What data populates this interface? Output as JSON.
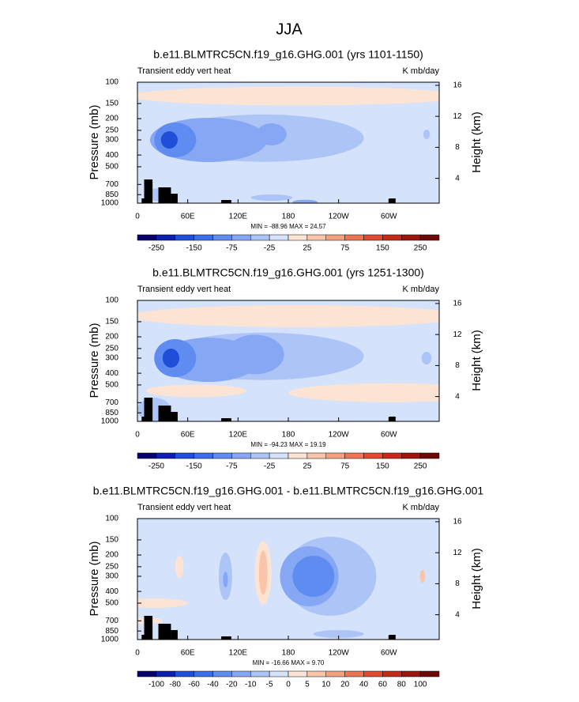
{
  "title": "JJA",
  "chart_data": [
    {
      "type": "contour",
      "title": "b.e11.BLMTRC5CN.f19_g16.GHG.001 (yrs 1101-1150)",
      "left_label": "Transient eddy vert heat",
      "right_label": "K mb/day",
      "ylabel": "Pressure (mb)",
      "y2label": "Height (km)",
      "xlim": [
        0,
        360
      ],
      "xticks": [
        0,
        {
          "value": 60,
          "label": "60E"
        },
        {
          "value": 120,
          "label": "120E"
        },
        180,
        {
          "value": 240,
          "label": "120W"
        },
        {
          "value": 300,
          "label": "60W"
        }
      ],
      "ylim": [
        1000,
        100
      ],
      "log_y": true,
      "yticks": [
        100,
        150,
        200,
        250,
        300,
        400,
        500,
        700,
        850,
        1000
      ],
      "y2lim": [
        0.8,
        16.4
      ],
      "y2ticks": [
        4,
        8,
        12,
        16
      ],
      "stats_label": "MIN = -88.96  MAX =  24.57",
      "colors": [
        "#06006c",
        "#0b1fb0",
        "#1f4fd8",
        "#3c6ee8",
        "#5f8cf0",
        "#86a8f4",
        "#adc4f7",
        "#d4e2fb",
        "#fde3d3",
        "#f9c4a8",
        "#f4a07c",
        "#ec7552",
        "#e04a2f",
        "#c42a16",
        "#9e150c",
        "#6e0a06"
      ],
      "colorbar_ticks": [
        -250,
        -150,
        -75,
        -25,
        25,
        75,
        150,
        250
      ]
    },
    {
      "type": "contour",
      "title": "b.e11.BLMTRC5CN.f19_g16.GHG.001 (yrs 1251-1300)",
      "left_label": "Transient eddy vert heat",
      "right_label": "K mb/day",
      "ylabel": "Pressure (mb)",
      "y2label": "Height (km)",
      "xlim": [
        0,
        360
      ],
      "xticks": [
        0,
        {
          "value": 60,
          "label": "60E"
        },
        {
          "value": 120,
          "label": "120E"
        },
        180,
        {
          "value": 240,
          "label": "120W"
        },
        {
          "value": 300,
          "label": "60W"
        }
      ],
      "ylim": [
        1000,
        100
      ],
      "log_y": true,
      "yticks": [
        100,
        150,
        200,
        250,
        300,
        400,
        500,
        700,
        850,
        1000
      ],
      "y2lim": [
        0.8,
        16.4
      ],
      "y2ticks": [
        4,
        8,
        12,
        16
      ],
      "stats_label": "MIN = -94.23  MAX =  19.19",
      "colors": [
        "#06006c",
        "#0b1fb0",
        "#1f4fd8",
        "#3c6ee8",
        "#5f8cf0",
        "#86a8f4",
        "#adc4f7",
        "#d4e2fb",
        "#fde3d3",
        "#f9c4a8",
        "#f4a07c",
        "#ec7552",
        "#e04a2f",
        "#c42a16",
        "#9e150c",
        "#6e0a06"
      ],
      "colorbar_ticks": [
        -250,
        -150,
        -75,
        -25,
        25,
        75,
        150,
        250
      ]
    },
    {
      "type": "contour",
      "title": "b.e11.BLMTRC5CN.f19_g16.GHG.001 - b.e11.BLMTRC5CN.f19_g16.GHG.001",
      "left_label": "Transient eddy vert heat",
      "right_label": "K mb/day",
      "ylabel": "Pressure (mb)",
      "y2label": "Height (km)",
      "xlim": [
        0,
        360
      ],
      "xticks": [
        0,
        {
          "value": 60,
          "label": "60E"
        },
        {
          "value": 120,
          "label": "120E"
        },
        180,
        {
          "value": 240,
          "label": "120W"
        },
        {
          "value": 300,
          "label": "60W"
        }
      ],
      "ylim": [
        1000,
        100
      ],
      "log_y": true,
      "yticks": [
        100,
        150,
        200,
        250,
        300,
        400,
        500,
        700,
        850,
        1000
      ],
      "y2lim": [
        0.8,
        16.4
      ],
      "y2ticks": [
        4,
        8,
        12,
        16
      ],
      "stats_label": "MIN = -16.66  MAX =  9.70",
      "colors": [
        "#06006c",
        "#0b1fb0",
        "#1f4fd8",
        "#3c6ee8",
        "#5f8cf0",
        "#86a8f4",
        "#adc4f7",
        "#d4e2fb",
        "#fde3d3",
        "#f9c4a8",
        "#f4a07c",
        "#ec7552",
        "#e04a2f",
        "#c42a16",
        "#9e150c",
        "#6e0a06"
      ],
      "colorbar_ticks": [
        -100,
        -80,
        -60,
        -40,
        -20,
        -10,
        -5,
        0,
        5,
        10,
        20,
        40,
        60,
        80,
        100
      ]
    }
  ]
}
